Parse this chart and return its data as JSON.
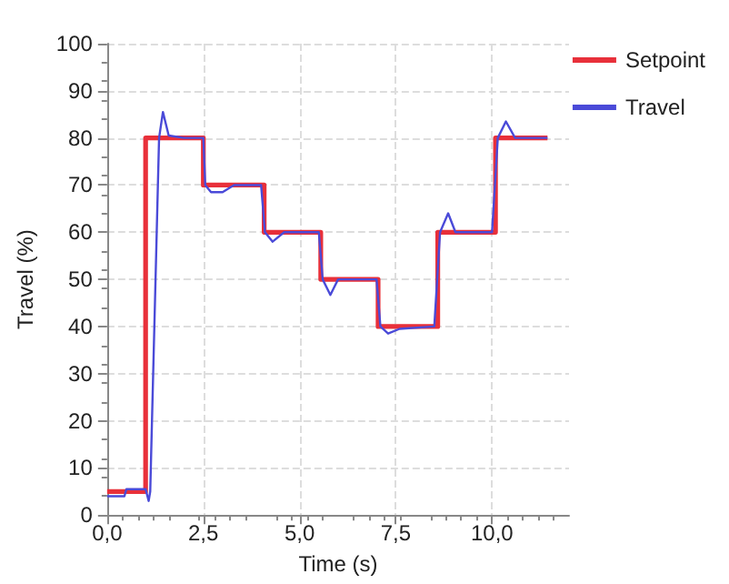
{
  "chart_data": {
    "type": "line",
    "xlabel": "Time (s)",
    "ylabel": "Travel (%)",
    "xlim": [
      0,
      12
    ],
    "xticks": [
      {
        "value": 0,
        "label": "0,0"
      },
      {
        "value": 2.5,
        "label": "2,5"
      },
      {
        "value": 5,
        "label": "5,0"
      },
      {
        "value": 7.5,
        "label": "7,5"
      },
      {
        "value": 10,
        "label": "10,0"
      }
    ],
    "ylim": [
      0,
      100
    ],
    "yticks": [
      0,
      10,
      20,
      30,
      40,
      50,
      60,
      70,
      80,
      90,
      100
    ],
    "grid": true,
    "legend": "top right",
    "marker": "none",
    "line_style": "solid",
    "series": [
      {
        "name": "Setpoint",
        "type": "step",
        "color": "#e8303a",
        "x": [
          0,
          1.0,
          2.5,
          4.08,
          5.55,
          7.04,
          8.59,
          10.09,
          11.44
        ],
        "values": [
          5,
          80,
          70,
          60,
          50,
          40,
          60,
          80,
          80
        ]
      },
      {
        "name": "Travel",
        "color": "#4a4ad8",
        "x": [
          0,
          0.45,
          0.5,
          1.0,
          1.08,
          1.12,
          1.35,
          1.45,
          1.6,
          2.0,
          2.5,
          2.55,
          2.7,
          3.0,
          3.3,
          4.0,
          4.1,
          4.3,
          4.6,
          5.5,
          5.6,
          5.8,
          6.0,
          7.0,
          7.1,
          7.3,
          7.6,
          8.5,
          8.65,
          8.86,
          9.05,
          10.0,
          10.15,
          10.36,
          10.6,
          11.44
        ],
        "values": [
          4,
          4,
          5.5,
          5.5,
          3,
          5,
          80,
          85.5,
          80.5,
          80,
          80,
          70,
          68.5,
          68.5,
          70,
          70,
          60,
          58,
          60,
          60,
          50,
          46.7,
          50,
          50,
          40,
          38.5,
          39.5,
          40,
          60,
          64,
          60,
          60,
          80,
          83.5,
          80,
          80
        ]
      }
    ]
  }
}
